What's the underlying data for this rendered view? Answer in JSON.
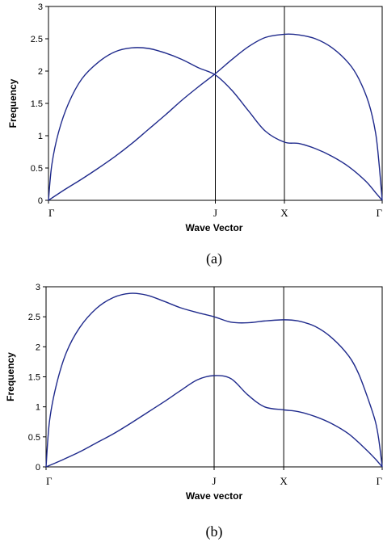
{
  "chart_data": [
    {
      "type": "line",
      "caption": "(a)",
      "xlabel": "Wave Vector",
      "ylabel": "Frequency",
      "ylim": [
        0,
        3
      ],
      "yticks": [
        "0",
        "0.5",
        "1",
        "1.5",
        "2",
        "2.5",
        "3"
      ],
      "xlim": [
        0,
        1
      ],
      "x_points": [
        {
          "label": "Γ",
          "x": 0
        },
        {
          "label": "J",
          "x": 0.5
        },
        {
          "label": "X",
          "x": 0.707
        },
        {
          "label": "Γ",
          "x": 1
        }
      ],
      "grid": false,
      "series": [
        {
          "color": "#1f2a8c",
          "x": [
            0,
            0.01,
            0.03,
            0.06,
            0.1,
            0.15,
            0.2,
            0.25,
            0.3,
            0.35,
            0.4,
            0.45,
            0.5,
            0.55,
            0.6,
            0.65,
            0.707,
            0.75,
            0.8,
            0.85,
            0.9,
            0.95,
            0.98,
            1
          ],
          "y": [
            0,
            0.55,
            1.05,
            1.5,
            1.88,
            2.14,
            2.3,
            2.36,
            2.35,
            2.28,
            2.18,
            2.05,
            1.94,
            1.7,
            1.38,
            1.07,
            0.9,
            0.88,
            0.8,
            0.68,
            0.52,
            0.3,
            0.12,
            0
          ]
        },
        {
          "color": "#1f2a8c",
          "x": [
            0,
            0.05,
            0.1,
            0.15,
            0.2,
            0.25,
            0.3,
            0.35,
            0.4,
            0.45,
            0.5,
            0.55,
            0.6,
            0.65,
            0.707,
            0.75,
            0.8,
            0.85,
            0.9,
            0.93,
            0.96,
            0.98,
            0.99,
            1
          ],
          "y": [
            0,
            0.17,
            0.33,
            0.5,
            0.68,
            0.88,
            1.1,
            1.32,
            1.55,
            1.76,
            1.96,
            2.18,
            2.38,
            2.52,
            2.57,
            2.56,
            2.5,
            2.36,
            2.12,
            1.88,
            1.5,
            1.05,
            0.6,
            0
          ]
        }
      ]
    },
    {
      "type": "line",
      "caption": "(b)",
      "xlabel": "Wave vector",
      "ylabel": "Frequency",
      "ylim": [
        0,
        3
      ],
      "yticks": [
        "0",
        "0.5",
        "1",
        "1.5",
        "2",
        "2.5",
        "3"
      ],
      "xlim": [
        0,
        1
      ],
      "x_points": [
        {
          "label": "Γ",
          "x": 0
        },
        {
          "label": "J",
          "x": 0.5
        },
        {
          "label": "X",
          "x": 0.707
        },
        {
          "label": "Γ",
          "x": 1
        }
      ],
      "grid": false,
      "series": [
        {
          "color": "#1f2a8c",
          "x": [
            0,
            0.01,
            0.03,
            0.06,
            0.1,
            0.15,
            0.2,
            0.25,
            0.3,
            0.35,
            0.4,
            0.45,
            0.5,
            0.55,
            0.6,
            0.65,
            0.707,
            0.75,
            0.8,
            0.85,
            0.9,
            0.93,
            0.96,
            0.98,
            0.99,
            1
          ],
          "y": [
            0,
            0.75,
            1.35,
            1.9,
            2.32,
            2.64,
            2.82,
            2.89,
            2.86,
            2.76,
            2.65,
            2.57,
            2.5,
            2.41,
            2.4,
            2.43,
            2.45,
            2.43,
            2.34,
            2.15,
            1.85,
            1.55,
            1.1,
            0.75,
            0.45,
            0
          ]
        },
        {
          "color": "#1f2a8c",
          "x": [
            0,
            0.05,
            0.1,
            0.15,
            0.2,
            0.25,
            0.3,
            0.35,
            0.4,
            0.45,
            0.5,
            0.55,
            0.6,
            0.65,
            0.707,
            0.75,
            0.8,
            0.85,
            0.9,
            0.95,
            0.98,
            1
          ],
          "y": [
            0,
            0.12,
            0.25,
            0.4,
            0.55,
            0.72,
            0.9,
            1.08,
            1.27,
            1.45,
            1.52,
            1.47,
            1.2,
            1.0,
            0.95,
            0.92,
            0.84,
            0.72,
            0.55,
            0.3,
            0.13,
            0
          ]
        }
      ]
    }
  ]
}
